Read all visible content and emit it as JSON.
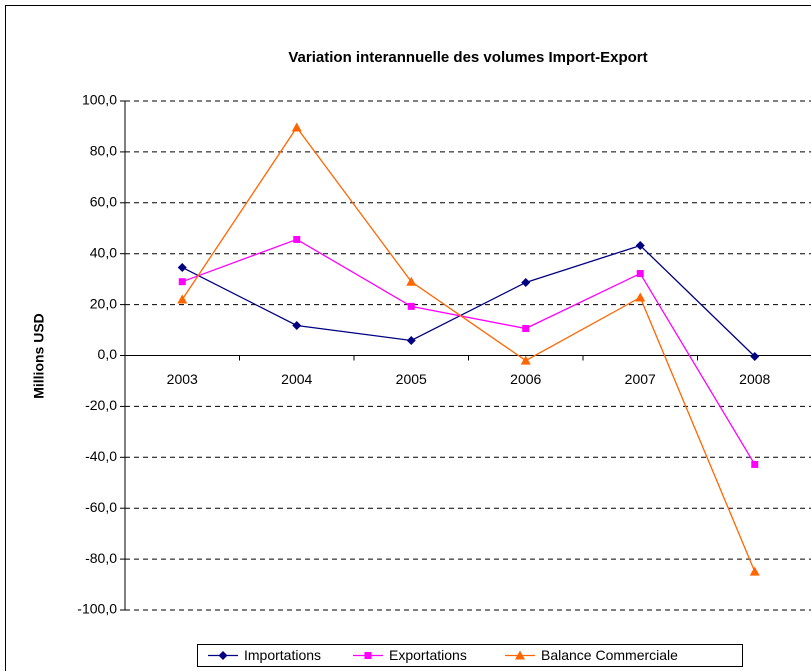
{
  "chart_data": {
    "type": "line",
    "title": "Variation interannuelle des volumes Import-Export",
    "y_label": "Millions USD",
    "categories": [
      "2003",
      "2004",
      "2005",
      "2006",
      "2007",
      "2008"
    ],
    "series": [
      {
        "name": "Importations",
        "color": "#000080",
        "marker": "diamond",
        "values": [
          34.6,
          11.8,
          5.9,
          28.7,
          43.2,
          -0.4
        ]
      },
      {
        "name": "Exportations",
        "color": "#ff00ff",
        "marker": "square",
        "values": [
          29.0,
          45.6,
          19.3,
          10.6,
          32.2,
          -42.8
        ]
      },
      {
        "name": "Balance Commerciale",
        "color": "#ff6600",
        "marker": "triangle",
        "values": [
          22.0,
          89.6,
          29.0,
          -2.0,
          22.8,
          -84.9
        ]
      }
    ],
    "ylim": [
      -100,
      100
    ],
    "yticks": [
      {
        "value": -100,
        "label": "-100,0"
      },
      {
        "value": -80,
        "label": "-80,0"
      },
      {
        "value": -60,
        "label": "-60,0"
      },
      {
        "value": -40,
        "label": "-40,0"
      },
      {
        "value": -20,
        "label": "-20,0"
      },
      {
        "value": 0,
        "label": "0,0"
      },
      {
        "value": 20,
        "label": "20,0"
      },
      {
        "value": 40,
        "label": "40,0"
      },
      {
        "value": 60,
        "label": "60,0"
      },
      {
        "value": 80,
        "label": "80,0"
      },
      {
        "value": 100,
        "label": "100,0"
      }
    ],
    "grid": true,
    "legend": "bottom"
  }
}
